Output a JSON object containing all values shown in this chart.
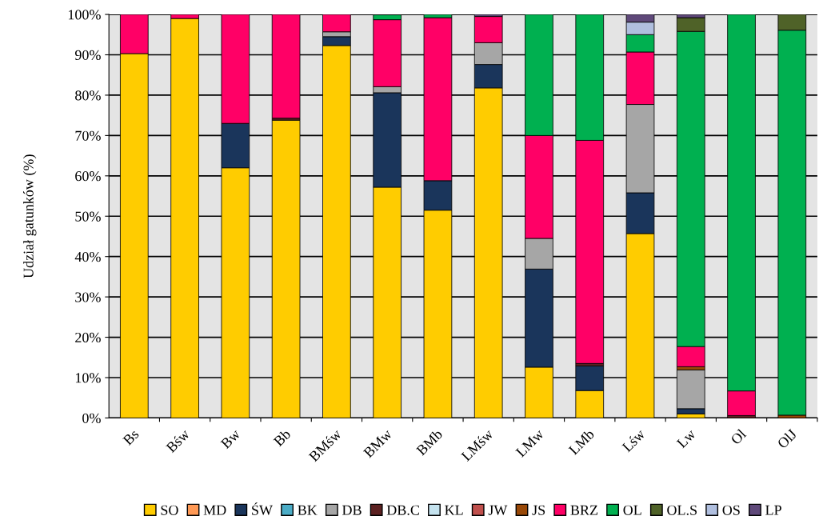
{
  "chart_data": {
    "type": "bar",
    "stacked": true,
    "ylabel": "Udział gatunków (%)",
    "categories": [
      "Bs",
      "Bśw",
      "Bw",
      "Bb",
      "BMśw",
      "BMw",
      "BMb",
      "LMśw",
      "LMw",
      "LMb",
      "Lśw",
      "Lw",
      "Ol",
      "OlJ"
    ],
    "ylim": [
      0,
      100
    ],
    "yticks": [
      {
        "value": 0,
        "label": "0%"
      },
      {
        "value": 10,
        "label": "10%"
      },
      {
        "value": 20,
        "label": "20%"
      },
      {
        "value": 30,
        "label": "30%"
      },
      {
        "value": 40,
        "label": "40%"
      },
      {
        "value": 50,
        "label": "50%"
      },
      {
        "value": 60,
        "label": "60%"
      },
      {
        "value": 70,
        "label": "70%"
      },
      {
        "value": 80,
        "label": "80%"
      },
      {
        "value": 90,
        "label": "90%"
      },
      {
        "value": 100,
        "label": "100%"
      }
    ],
    "grid": "y",
    "legend": "bottom",
    "series": [
      {
        "name": "SO",
        "color": "#ffcc00",
        "values": [
          90.3,
          99,
          62,
          73.8,
          92.3,
          57.2,
          51.5,
          81.8,
          12.6,
          6.8,
          45.7,
          1,
          0,
          0
        ]
      },
      {
        "name": "MD",
        "color": "#ff9955",
        "values": [
          0,
          0,
          0,
          0,
          0,
          0,
          0,
          0,
          0,
          0,
          0,
          0,
          0,
          0
        ]
      },
      {
        "name": "ŚW",
        "color": "#1a355b",
        "values": [
          0,
          0,
          11,
          0,
          2.2,
          23.4,
          7.3,
          5.8,
          24.3,
          6.1,
          10.1,
          1.3,
          0,
          0
        ]
      },
      {
        "name": "BK",
        "color": "#4bacc6",
        "values": [
          0,
          0,
          0,
          0,
          0,
          0,
          0,
          0,
          0,
          0,
          0,
          0,
          0,
          0
        ]
      },
      {
        "name": "DB",
        "color": "#a6a6a6",
        "values": [
          0,
          0,
          0,
          0,
          1.2,
          1.5,
          0,
          5.4,
          7.6,
          0,
          21.9,
          9.6,
          0,
          0
        ]
      },
      {
        "name": "DB.C",
        "color": "#5c2121",
        "values": [
          0,
          0,
          0,
          0.5,
          0,
          0,
          0,
          0,
          0,
          0.6,
          0,
          0,
          0.6,
          0
        ]
      },
      {
        "name": "KL",
        "color": "#c5e3ef",
        "values": [
          0,
          0,
          0,
          0,
          0,
          0,
          0,
          0,
          0,
          0,
          0,
          0,
          0,
          0
        ]
      },
      {
        "name": "JW",
        "color": "#c0504d",
        "values": [
          0,
          0,
          0,
          0,
          0,
          0,
          0,
          0,
          0,
          0,
          0,
          0,
          0,
          0
        ]
      },
      {
        "name": "JS",
        "color": "#984807",
        "values": [
          0,
          0,
          0,
          0,
          0,
          0,
          0,
          0,
          0,
          0,
          0,
          0.8,
          0,
          0.7
        ]
      },
      {
        "name": "BRZ",
        "color": "#ff0066",
        "values": [
          9.7,
          1,
          27,
          25.7,
          4.3,
          16.6,
          40.4,
          6.5,
          25.5,
          55.3,
          13,
          5,
          6.1,
          0
        ]
      },
      {
        "name": "OL",
        "color": "#00b050",
        "values": [
          0,
          0,
          0,
          0,
          0,
          1.2,
          0.8,
          0,
          30,
          31.2,
          4.3,
          78.1,
          93.3,
          95.4
        ]
      },
      {
        "name": "OL.S",
        "color": "#4f6228",
        "values": [
          0,
          0,
          0,
          0,
          0,
          0,
          0,
          0,
          0,
          0,
          0,
          3.4,
          0,
          3.9
        ]
      },
      {
        "name": "OS",
        "color": "#b0bfdf",
        "values": [
          0,
          0,
          0,
          0,
          0,
          0,
          0,
          0,
          0,
          0,
          3.1,
          0,
          0,
          0
        ]
      },
      {
        "name": "LP",
        "color": "#5f497a",
        "values": [
          0,
          0,
          0,
          0,
          0,
          0,
          0,
          0.5,
          0,
          0,
          1.9,
          0.8,
          0,
          0
        ]
      }
    ]
  }
}
